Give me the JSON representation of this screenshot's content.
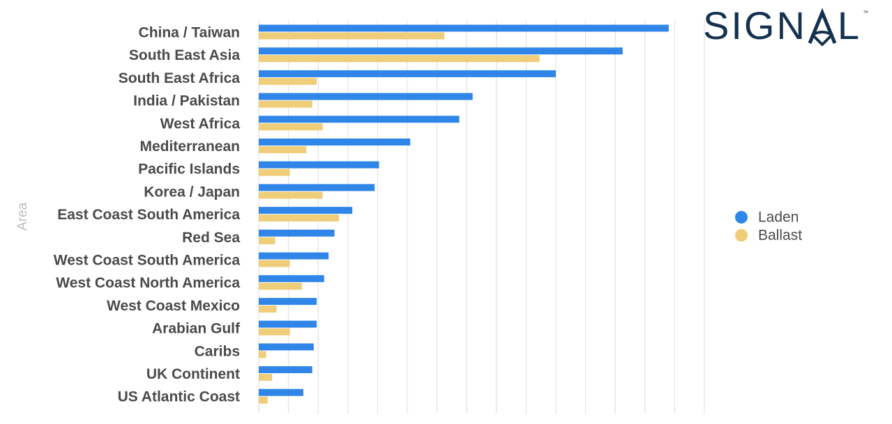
{
  "logo": {
    "text_before": "SIGN",
    "text_after": "L",
    "trademark": "™",
    "color": "#14314f"
  },
  "chart_data": {
    "type": "bar",
    "orientation": "horizontal",
    "ylabel": "Area",
    "xlabel": "",
    "xlim": [
      0,
      300
    ],
    "grid": true,
    "legend_position": "right",
    "categories": [
      "China / Taiwan",
      "South East Asia",
      "South East Africa",
      "India / Pakistan",
      "West Africa",
      "Mediterranean",
      "Pacific Islands",
      "Korea / Japan",
      "East Coast South America",
      "Red Sea",
      "West Coast South America",
      "West Coast North America",
      "West Coast Mexico",
      "Arabian Gulf",
      "Caribs",
      "UK Continent",
      "US Atlantic Coast"
    ],
    "series": [
      {
        "name": "Laden",
        "color": "#2f86e8",
        "values": [
          276,
          245,
          200,
          144,
          135,
          102,
          81,
          78,
          63,
          51,
          47,
          44,
          39,
          39,
          37,
          36,
          30
        ]
      },
      {
        "name": "Ballast",
        "color": "#f0cd78",
        "values": [
          125,
          189,
          39,
          36,
          43,
          32,
          21,
          43,
          54,
          11,
          21,
          29,
          12,
          21,
          5,
          9,
          6
        ]
      }
    ]
  }
}
